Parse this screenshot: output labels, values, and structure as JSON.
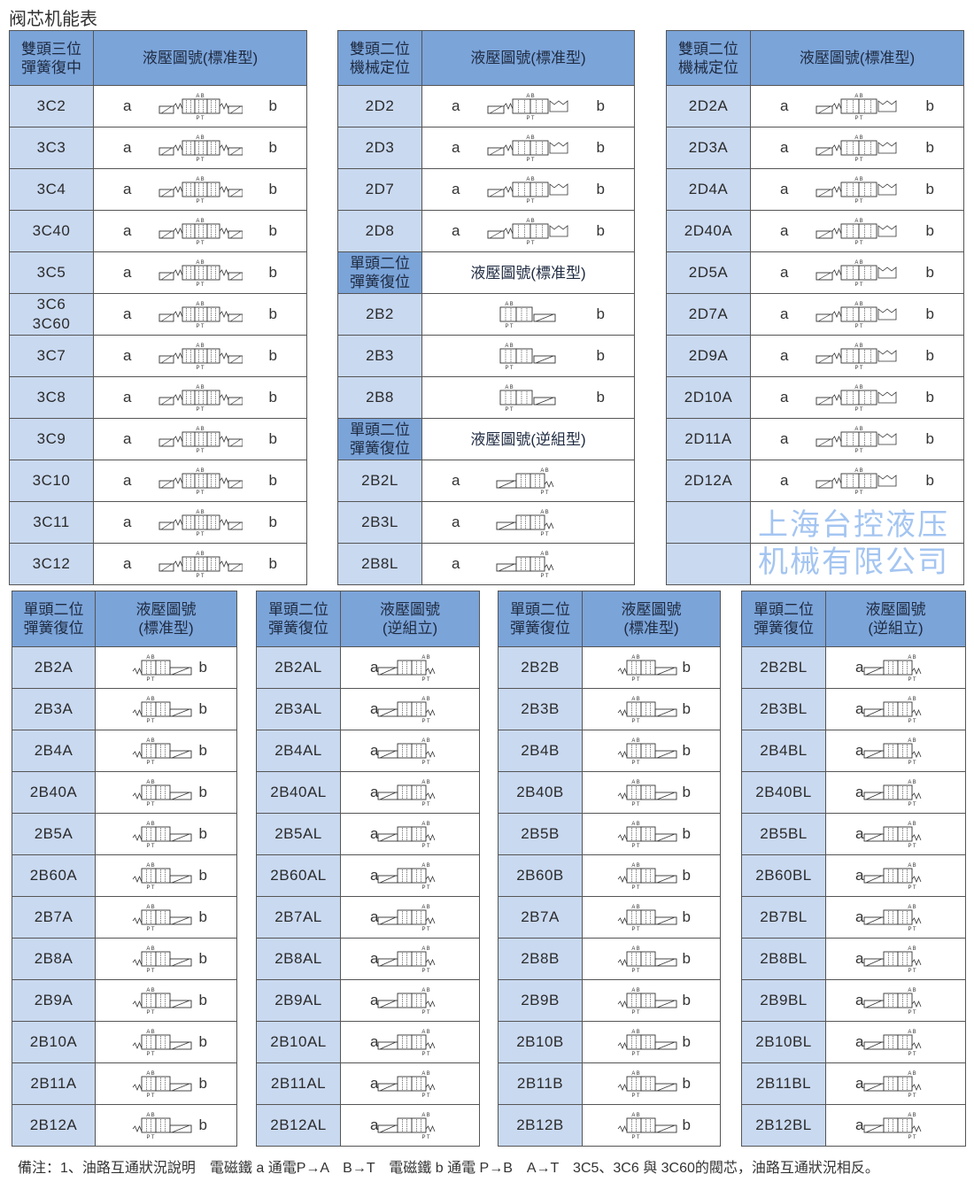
{
  "title": "阀芯机能表",
  "colors": {
    "header_bg": "#7ba4d9",
    "code_bg": "#c9d9f0",
    "border": "#555555"
  },
  "ports": {
    "top": "A B",
    "bottom": "P T"
  },
  "watermark": "上海台控液压机械有限公司",
  "tables": [
    {
      "h1": "雙頭三位\n彈簧復中",
      "h2": "液壓圖號(標准型)",
      "symbol": "3c",
      "rows": [
        {
          "code": "3C2",
          "a": "a",
          "b": "b"
        },
        {
          "code": "3C3",
          "a": "a",
          "b": "b"
        },
        {
          "code": "3C4",
          "a": "a",
          "b": "b"
        },
        {
          "code": "3C40",
          "a": "a",
          "b": "b"
        },
        {
          "code": "3C5",
          "a": "a",
          "b": "b"
        },
        {
          "code": "3C6\n3C60",
          "a": "a",
          "b": "b"
        },
        {
          "code": "3C7",
          "a": "a",
          "b": "b"
        },
        {
          "code": "3C8",
          "a": "a",
          "b": "b"
        },
        {
          "code": "3C9",
          "a": "a",
          "b": "b"
        },
        {
          "code": "3C10",
          "a": "a",
          "b": "b"
        },
        {
          "code": "3C11",
          "a": "a",
          "b": "b"
        },
        {
          "code": "3C12",
          "a": "a",
          "b": "b"
        }
      ]
    },
    {
      "h1": "雙頭二位\n機械定位",
      "h2": "液壓圖號(標准型)",
      "symbol": "2d",
      "rows": [
        {
          "code": "2D2",
          "a": "a",
          "b": "b"
        },
        {
          "code": "2D3",
          "a": "a",
          "b": "b"
        },
        {
          "code": "2D7",
          "a": "a",
          "b": "b"
        },
        {
          "code": "2D8",
          "a": "a",
          "b": "b"
        },
        {
          "sub1": "單頭二位\n彈簧復位",
          "sub2": "液壓圖號(標准型)"
        },
        {
          "code": "2B2",
          "b": "b",
          "sym": "b"
        },
        {
          "code": "2B3",
          "b": "b",
          "sym": "b"
        },
        {
          "code": "2B8",
          "b": "b",
          "sym": "b"
        },
        {
          "sub1": "單頭二位\n彈簧復位",
          "sub2": "液壓圖號(逆組型)"
        },
        {
          "code": "2B2L",
          "a": "a",
          "sym": "l"
        },
        {
          "code": "2B3L",
          "a": "a",
          "sym": "l"
        },
        {
          "code": "2B8L",
          "a": "a",
          "sym": "l"
        }
      ]
    },
    {
      "h1": "雙頭二位\n機械定位",
      "h2": "液壓圖號(標准型)",
      "symbol": "2da",
      "rows": [
        {
          "code": "2D2A",
          "a": "a",
          "b": "b"
        },
        {
          "code": "2D3A",
          "a": "a",
          "b": "b"
        },
        {
          "code": "2D4A",
          "a": "a",
          "b": "b"
        },
        {
          "code": "2D40A",
          "a": "a",
          "b": "b"
        },
        {
          "code": "2D5A",
          "a": "a",
          "b": "b"
        },
        {
          "code": "2D7A",
          "a": "a",
          "b": "b"
        },
        {
          "code": "2D9A",
          "a": "a",
          "b": "b"
        },
        {
          "code": "2D10A",
          "a": "a",
          "b": "b"
        },
        {
          "code": "2D11A",
          "a": "a",
          "b": "b"
        },
        {
          "code": "2D12A",
          "a": "a",
          "b": "b"
        },
        {
          "blank": true
        },
        {
          "blank": true
        }
      ]
    },
    {
      "h1": "單頭二位\n彈簧復位",
      "h2": "液壓圖號\n(標准型)",
      "symbol": "a",
      "rows": [
        {
          "code": "2B2A",
          "b": "b"
        },
        {
          "code": "2B3A",
          "b": "b"
        },
        {
          "code": "2B4A",
          "b": "b"
        },
        {
          "code": "2B40A",
          "b": "b"
        },
        {
          "code": "2B5A",
          "b": "b"
        },
        {
          "code": "2B60A",
          "b": "b"
        },
        {
          "code": "2B7A",
          "b": "b"
        },
        {
          "code": "2B8A",
          "b": "b"
        },
        {
          "code": "2B9A",
          "b": "b"
        },
        {
          "code": "2B10A",
          "b": "b"
        },
        {
          "code": "2B11A",
          "b": "b"
        },
        {
          "code": "2B12A",
          "b": "b"
        }
      ]
    },
    {
      "h1": "單頭二位\n彈簧復位",
      "h2": "液壓圖號\n(逆組立)",
      "symbol": "al",
      "rows": [
        {
          "code": "2B2AL",
          "a": "a"
        },
        {
          "code": "2B3AL",
          "a": "a"
        },
        {
          "code": "2B4AL",
          "a": "a"
        },
        {
          "code": "2B40AL",
          "a": "a"
        },
        {
          "code": "2B5AL",
          "a": "a"
        },
        {
          "code": "2B60AL",
          "a": "a"
        },
        {
          "code": "2B7AL",
          "a": "a"
        },
        {
          "code": "2B8AL",
          "a": "a"
        },
        {
          "code": "2B9AL",
          "a": "a"
        },
        {
          "code": "2B10AL",
          "a": "a"
        },
        {
          "code": "2B11AL",
          "a": "a"
        },
        {
          "code": "2B12AL",
          "a": "a"
        }
      ]
    },
    {
      "h1": "單頭二位\n彈簧復位",
      "h2": "液壓圖號\n(標准型)",
      "symbol": "bb",
      "rows": [
        {
          "code": "2B2B",
          "b": "b"
        },
        {
          "code": "2B3B",
          "b": "b"
        },
        {
          "code": "2B4B",
          "b": "b"
        },
        {
          "code": "2B40B",
          "b": "b"
        },
        {
          "code": "2B5B",
          "b": "b"
        },
        {
          "code": "2B60B",
          "b": "b"
        },
        {
          "code": "2B7A",
          "b": "b"
        },
        {
          "code": "2B8B",
          "b": "b"
        },
        {
          "code": "2B9B",
          "b": "b"
        },
        {
          "code": "2B10B",
          "b": "b"
        },
        {
          "code": "2B11B",
          "b": "b"
        },
        {
          "code": "2B12B",
          "b": "b"
        }
      ]
    },
    {
      "h1": "單頭二位\n彈簧復位",
      "h2": "液壓圖號\n(逆組立)",
      "symbol": "bl",
      "rows": [
        {
          "code": "2B2BL",
          "a": "a"
        },
        {
          "code": "2B3BL",
          "a": "a"
        },
        {
          "code": "2B4BL",
          "a": "a"
        },
        {
          "code": "2B40BL",
          "a": "a"
        },
        {
          "code": "2B5BL",
          "a": "a"
        },
        {
          "code": "2B60BL",
          "a": "a"
        },
        {
          "code": "2B7BL",
          "a": "a"
        },
        {
          "code": "2B8BL",
          "a": "a"
        },
        {
          "code": "2B9BL",
          "a": "a"
        },
        {
          "code": "2B10BL",
          "a": "a"
        },
        {
          "code": "2B11BL",
          "a": "a"
        },
        {
          "code": "2B12BL",
          "a": "a"
        }
      ]
    }
  ],
  "note": "備注：1、油路互通狀況說明　電磁鐵 a 通電P→A　B→T　電磁鐵 b 通電 P→B　A→T　3C5、3C6 與 3C60的閥芯，油路互通狀況相反。"
}
